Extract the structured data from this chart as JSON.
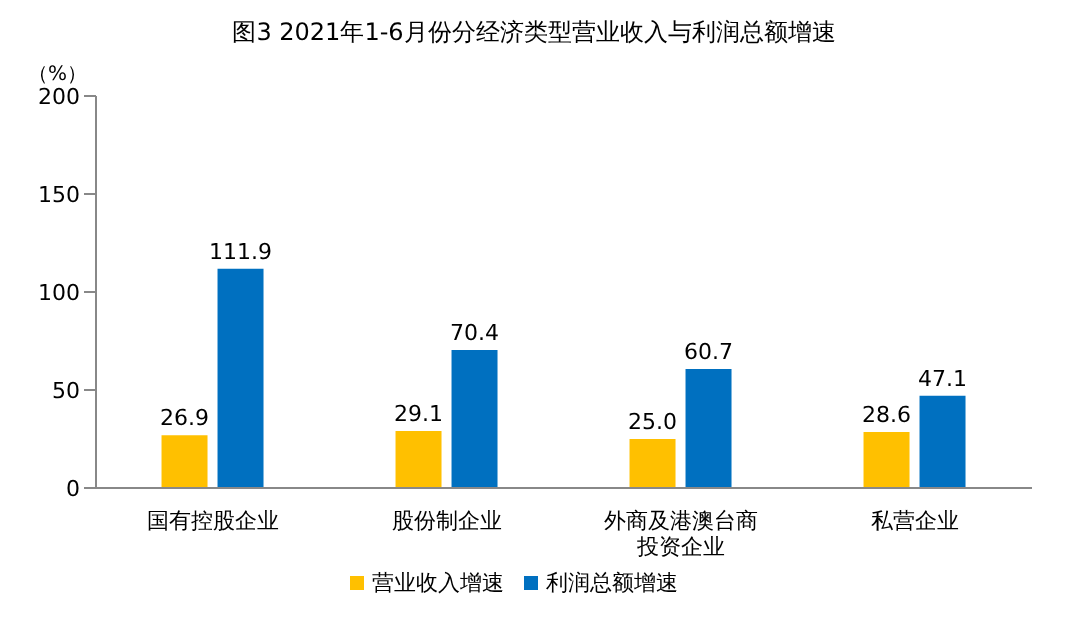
{
  "chart_data": {
    "type": "bar",
    "title": "图3  2021年1-6月份分经济类型营业收入与利润总额增速",
    "ylabel": "（%）",
    "categories": [
      "国有控股企业",
      "股份制企业",
      "外商及港澳台商投资企业",
      "私营企业"
    ],
    "series": [
      {
        "name": "营业收入增速",
        "color": "#ffc000",
        "values": [
          26.9,
          29.1,
          25.0,
          28.6
        ],
        "value_labels": [
          "26.9",
          "29.1",
          "25.0",
          "28.6"
        ]
      },
      {
        "name": "利润总额增速",
        "color": "#0070c0",
        "values": [
          111.9,
          70.4,
          60.7,
          47.1
        ],
        "value_labels": [
          "111.9",
          "70.4",
          "60.7",
          "47.1"
        ]
      }
    ],
    "ylim": [
      0,
      200
    ],
    "yticks": [
      0,
      50,
      100,
      150,
      200
    ],
    "grid": false,
    "legend": "bottom"
  }
}
